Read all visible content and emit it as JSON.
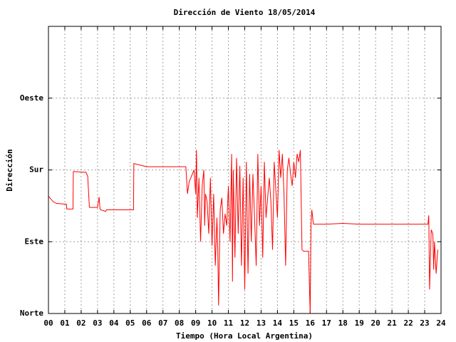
{
  "chart_data": {
    "type": "line",
    "title": "Dirección de Viento 18/05/2014",
    "x_label": "Tiempo (Hora Local Argentina)",
    "y_label": "Dirección",
    "xlim": [
      0,
      24
    ],
    "xticks": [
      {
        "value": 0,
        "label": "00"
      },
      {
        "value": 1,
        "label": "01"
      },
      {
        "value": 2,
        "label": "02"
      },
      {
        "value": 3,
        "label": "03"
      },
      {
        "value": 4,
        "label": "04"
      },
      {
        "value": 5,
        "label": "05"
      },
      {
        "value": 6,
        "label": "06"
      },
      {
        "value": 7,
        "label": "07"
      },
      {
        "value": 8,
        "label": "08"
      },
      {
        "value": 9,
        "label": "09"
      },
      {
        "value": 10,
        "label": "10"
      },
      {
        "value": 11,
        "label": "11"
      },
      {
        "value": 12,
        "label": "12"
      },
      {
        "value": 13,
        "label": "13"
      },
      {
        "value": 14,
        "label": "14"
      },
      {
        "value": 15,
        "label": "15"
      },
      {
        "value": 16,
        "label": "16"
      },
      {
        "value": 17,
        "label": "17"
      },
      {
        "value": 18,
        "label": "18"
      },
      {
        "value": 19,
        "label": "19"
      },
      {
        "value": 20,
        "label": "20"
      },
      {
        "value": 21,
        "label": "21"
      },
      {
        "value": 22,
        "label": "22"
      },
      {
        "value": 23,
        "label": "23"
      },
      {
        "value": 24,
        "label": "24"
      }
    ],
    "ylim": [
      0,
      360
    ],
    "yticks": [
      {
        "value": 0,
        "label": "Norte"
      },
      {
        "value": 90,
        "label": "Este"
      },
      {
        "value": 180,
        "label": "Sur"
      },
      {
        "value": 270,
        "label": "Oeste"
      }
    ],
    "grid": true,
    "x": [
      0,
      0.3,
      0.5,
      1.1,
      1.12,
      1.5,
      1.52,
      2.3,
      2.4,
      2.5,
      2.52,
      3.0,
      3.1,
      3.15,
      3.2,
      3.5,
      3.55,
      4.6,
      5.2,
      5.22,
      6,
      7,
      8.4,
      8.5,
      8.6,
      8.8,
      8.9,
      9.0,
      9.05,
      9.1,
      9.2,
      9.3,
      9.4,
      9.5,
      9.55,
      9.6,
      9.7,
      9.8,
      9.9,
      10.0,
      10.1,
      10.2,
      10.3,
      10.35,
      10.4,
      10.5,
      10.6,
      10.7,
      10.8,
      10.9,
      11.0,
      11.1,
      11.2,
      11.25,
      11.3,
      11.4,
      11.5,
      11.6,
      11.7,
      11.8,
      11.9,
      12.0,
      12.1,
      12.2,
      12.3,
      12.4,
      12.5,
      12.6,
      12.7,
      12.8,
      12.9,
      13.0,
      13.1,
      13.2,
      13.3,
      13.5,
      13.6,
      13.7,
      13.8,
      14.0,
      14.1,
      14.2,
      14.3,
      14.4,
      14.5,
      14.6,
      14.7,
      14.8,
      14.9,
      15.0,
      15.1,
      15.2,
      15.3,
      15.4,
      15.5,
      15.6,
      15.9,
      16.0,
      16.05,
      16.1,
      16.2,
      17,
      18,
      19,
      20,
      21,
      22,
      23.2,
      23.25,
      23.3,
      23.4,
      23.5,
      23.55,
      23.6,
      23.7,
      23.8
    ],
    "series": [
      {
        "name": "Dirección",
        "color": "#ff0000",
        "values": [
          147,
          140,
          138,
          137,
          131,
          131,
          178,
          177,
          172,
          134,
          133,
          133,
          146,
          131,
          130,
          128,
          130,
          130,
          130,
          188,
          184,
          184,
          184,
          150,
          165,
          175,
          180,
          150,
          205,
          120,
          170,
          90,
          160,
          180,
          110,
          150,
          140,
          100,
          170,
          85,
          150,
          60,
          120,
          80,
          10,
          130,
          145,
          100,
          125,
          110,
          160,
          90,
          200,
          40,
          180,
          70,
          195,
          100,
          185,
          60,
          170,
          30,
          190,
          50,
          175,
          90,
          175,
          120,
          60,
          200,
          110,
          160,
          70,
          190,
          120,
          170,
          140,
          80,
          190,
          120,
          205,
          170,
          200,
          150,
          60,
          180,
          195,
          175,
          160,
          190,
          170,
          200,
          190,
          205,
          80,
          78,
          78,
          0,
          110,
          130,
          112,
          112,
          113,
          112,
          112,
          112,
          112,
          112,
          123,
          30,
          105,
          100,
          55,
          90,
          50,
          80
        ]
      }
    ]
  }
}
